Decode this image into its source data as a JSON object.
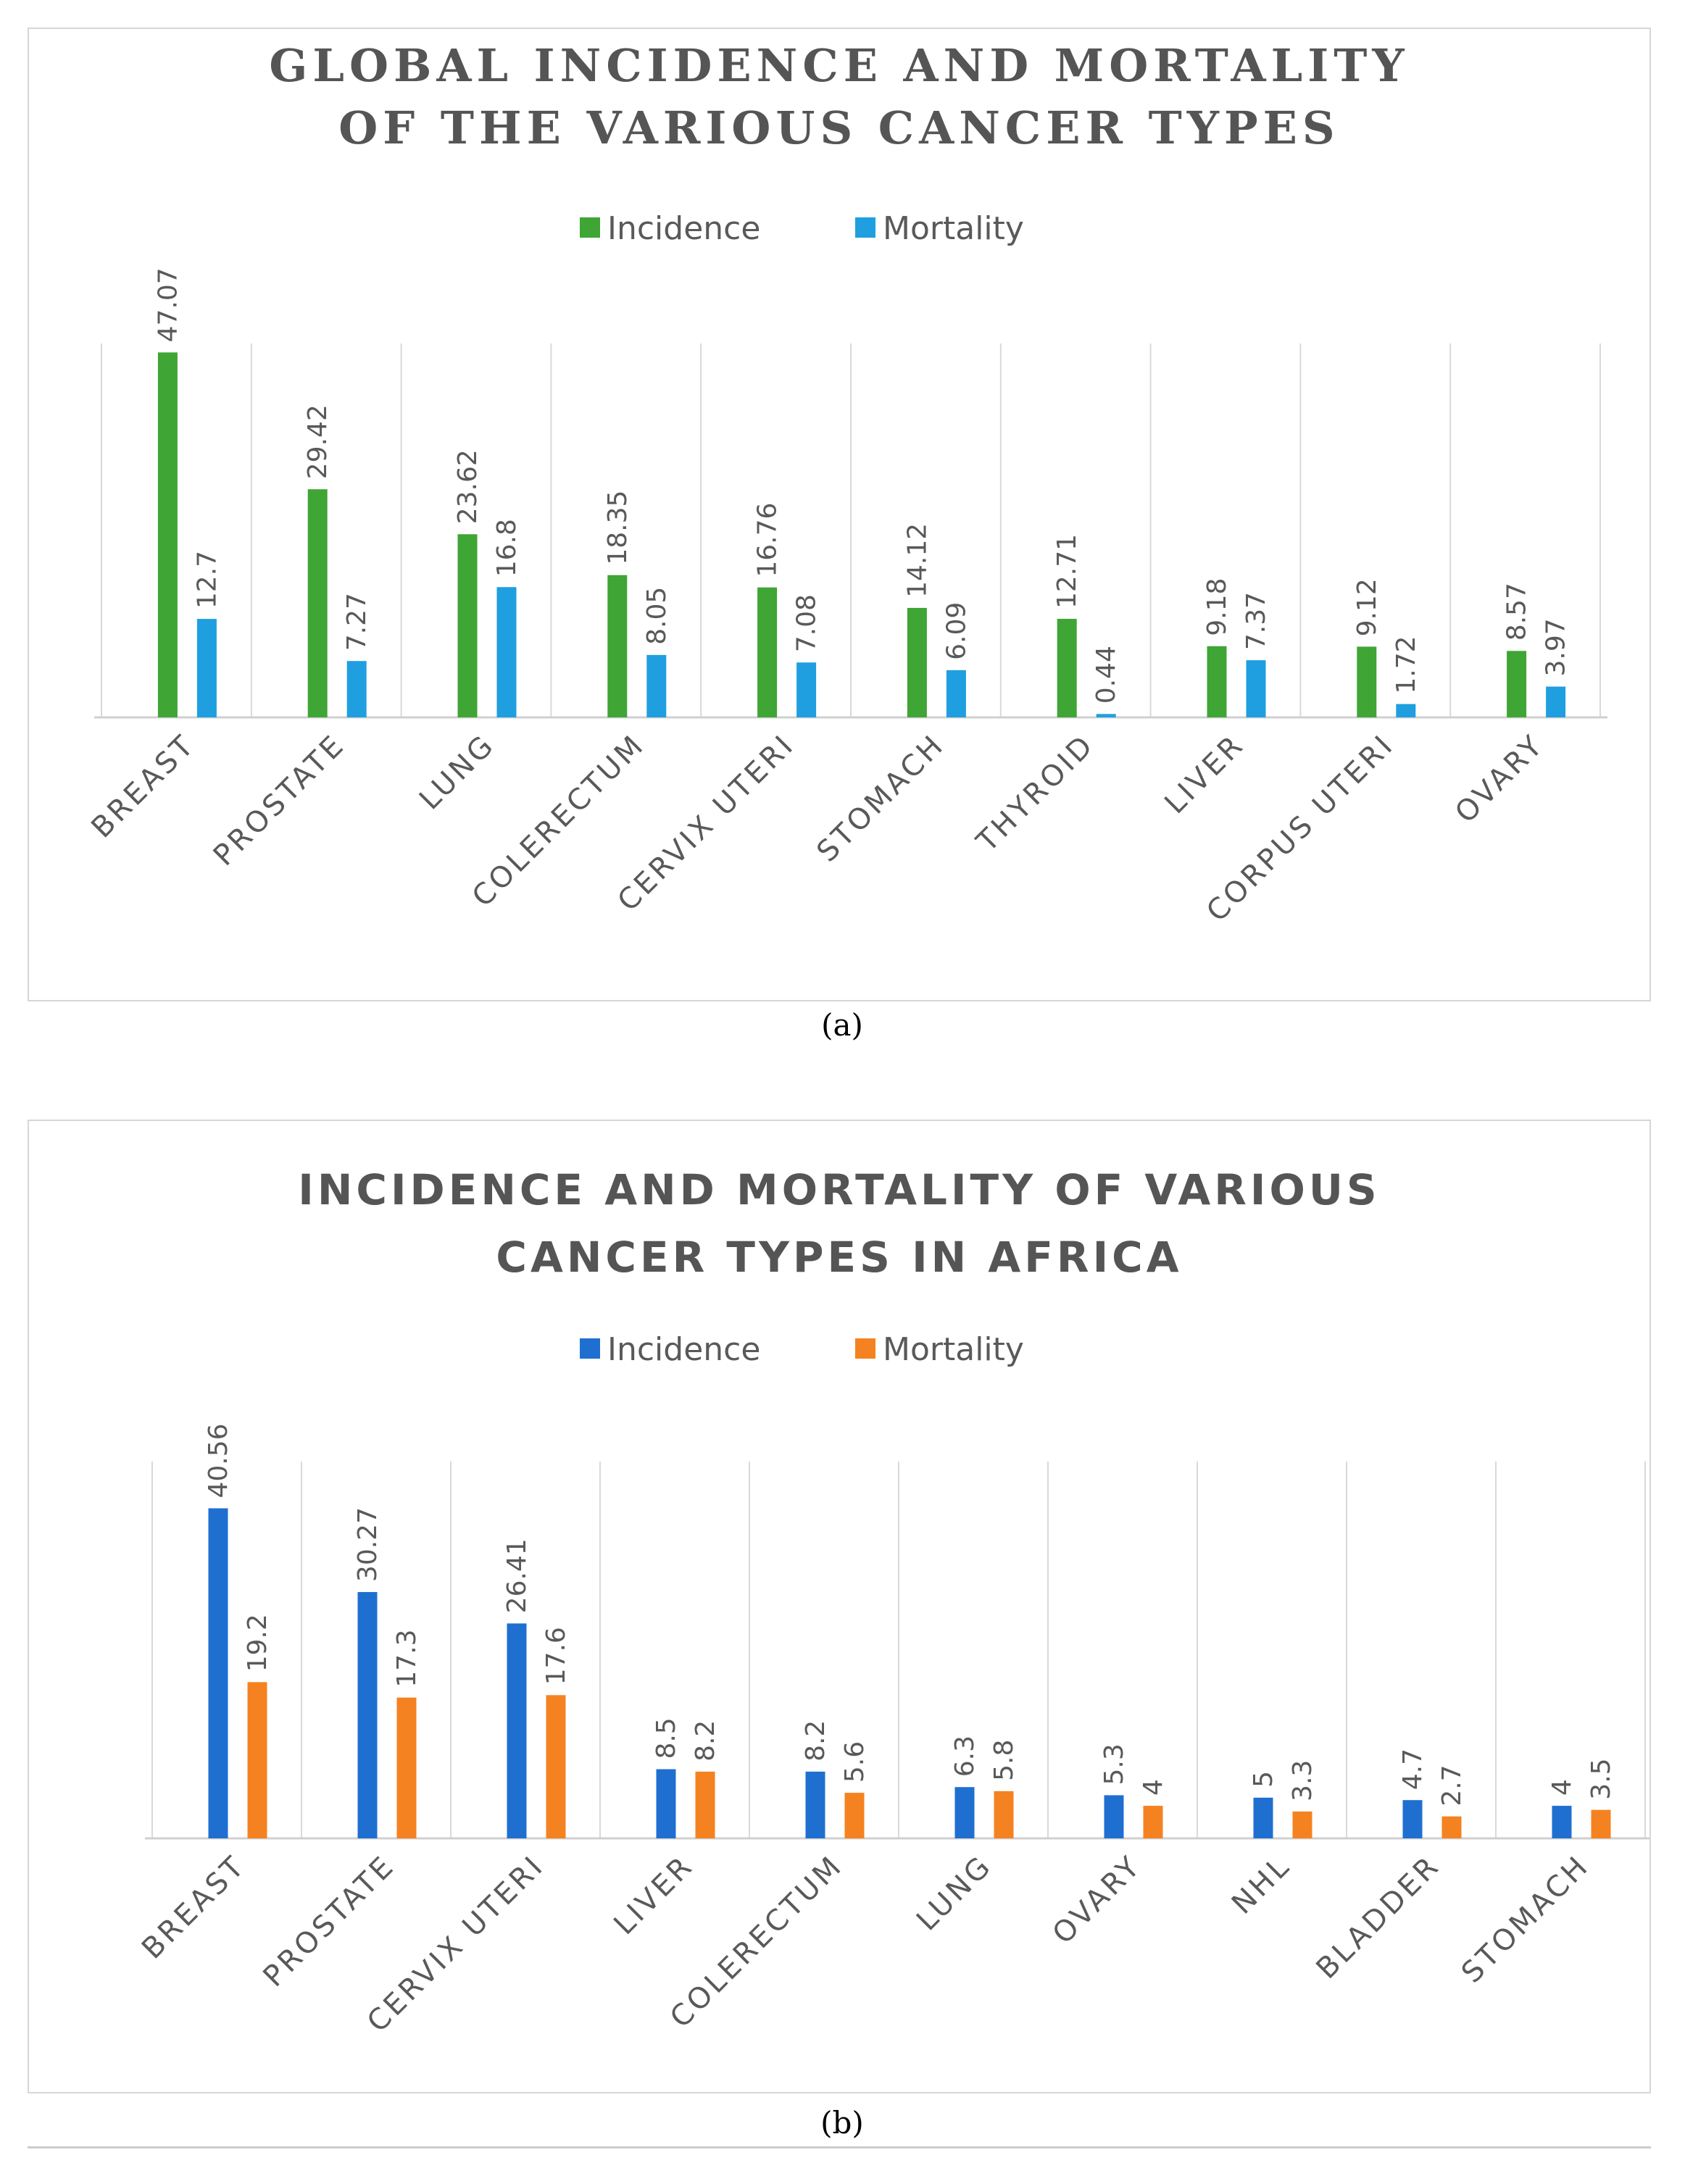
{
  "chart_data": [
    {
      "type": "bar",
      "panel": "a",
      "title_lines": [
        "GLOBAL INCIDENCE AND MORTALITY",
        "OF   THE VARIOUS CANCER TYPES"
      ],
      "categories": [
        "BREAST",
        "PROSTATE",
        "LUNG",
        "COLERECTUM",
        "CERVIX UTERI",
        "STOMACH",
        "THYROID",
        "LIVER",
        "CORPUS UTERI",
        "OVARY"
      ],
      "series": [
        {
          "name": "Incidence",
          "color": "#3fa535",
          "values": [
            47.07,
            29.42,
            23.62,
            18.35,
            16.76,
            14.12,
            12.71,
            9.18,
            9.12,
            8.57
          ]
        },
        {
          "name": "Mortality",
          "color": "#1f9fe0",
          "values": [
            12.7,
            7.27,
            16.8,
            8.05,
            7.08,
            6.09,
            0.44,
            7.37,
            1.72,
            3.97
          ]
        }
      ],
      "legend_position": "top-center",
      "ylim": [
        0,
        50
      ],
      "gridlines": "vertical separators",
      "xlabel": "",
      "ylabel": ""
    },
    {
      "type": "bar",
      "panel": "b",
      "title_lines": [
        "INCIDENCE AND MORTALITY OF VARIOUS",
        "CANCER TYPES IN AFRICA"
      ],
      "categories": [
        "BREAST",
        "PROSTATE",
        "CERVIX UTERI",
        "LIVER",
        "COLERECTUM",
        "LUNG",
        "OVARY",
        "NHL",
        "BLADDER",
        "STOMACH"
      ],
      "series": [
        {
          "name": "Incidence",
          "color": "#1f6fd1",
          "values": [
            40.56,
            30.27,
            26.41,
            8.5,
            8.2,
            6.3,
            5.3,
            5,
            4.7,
            4
          ]
        },
        {
          "name": "Mortality",
          "color": "#f58220",
          "values": [
            19.2,
            17.3,
            17.6,
            8.2,
            5.6,
            5.8,
            4,
            3.3,
            2.7,
            3.5
          ]
        }
      ],
      "legend_position": "top-center",
      "ylim": [
        0,
        45
      ],
      "gridlines": "vertical separators",
      "xlabel": "",
      "ylabel": ""
    }
  ],
  "captions": {
    "a": "(a)",
    "b": "(b)"
  }
}
